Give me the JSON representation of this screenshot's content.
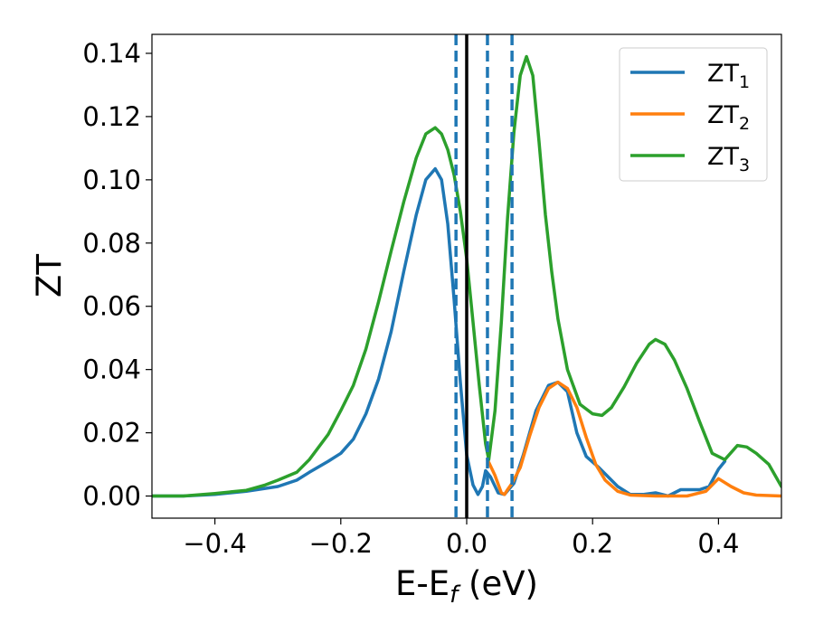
{
  "chart_data": {
    "type": "line",
    "title": "",
    "xlabel": "E-E",
    "xlabel_sub": "f",
    "xlabel_unit": " (eV)",
    "ylabel": "ZT",
    "xlim": [
      -0.5,
      0.5
    ],
    "ylim": [
      -0.007,
      0.146
    ],
    "x_ticks": [
      -0.4,
      -0.2,
      0.0,
      0.2,
      0.4
    ],
    "x_tick_labels": [
      "−0.4",
      "−0.2",
      "0.0",
      "0.2",
      "0.4"
    ],
    "y_ticks": [
      0.0,
      0.02,
      0.04,
      0.06,
      0.08,
      0.1,
      0.12,
      0.14
    ],
    "y_tick_labels": [
      "0.00",
      "0.02",
      "0.04",
      "0.06",
      "0.08",
      "0.10",
      "0.12",
      "0.14"
    ],
    "grid": false,
    "legend_position": "top-right",
    "colors": {
      "zt1": "#1f77b4",
      "zt2": "#ff7f0e",
      "zt3": "#2ca02c",
      "fermi": "#000000",
      "dashed": "#1f77b4"
    },
    "vertical_lines": [
      {
        "x": 0.0,
        "style": "solid",
        "color": "#000000"
      },
      {
        "x": -0.017,
        "style": "dashed",
        "color": "#1f77b4"
      },
      {
        "x": 0.033,
        "style": "dashed",
        "color": "#1f77b4"
      },
      {
        "x": 0.072,
        "style": "dashed",
        "color": "#1f77b4"
      }
    ],
    "series": [
      {
        "name": "ZT",
        "sub": "1",
        "color": "#1f77b4",
        "points": [
          [
            -0.5,
            0.0
          ],
          [
            -0.45,
            0.0
          ],
          [
            -0.4,
            0.0005
          ],
          [
            -0.35,
            0.0015
          ],
          [
            -0.3,
            0.003
          ],
          [
            -0.27,
            0.005
          ],
          [
            -0.25,
            0.0075
          ],
          [
            -0.22,
            0.011
          ],
          [
            -0.2,
            0.0135
          ],
          [
            -0.18,
            0.018
          ],
          [
            -0.16,
            0.026
          ],
          [
            -0.14,
            0.037
          ],
          [
            -0.12,
            0.052
          ],
          [
            -0.1,
            0.071
          ],
          [
            -0.08,
            0.089
          ],
          [
            -0.065,
            0.1
          ],
          [
            -0.05,
            0.1035
          ],
          [
            -0.04,
            0.1
          ],
          [
            -0.03,
            0.086
          ],
          [
            -0.02,
            0.062
          ],
          [
            -0.01,
            0.036
          ],
          [
            0.0,
            0.013
          ],
          [
            0.01,
            0.0035
          ],
          [
            0.018,
            0.0005
          ],
          [
            0.025,
            0.003
          ],
          [
            0.03,
            0.008
          ],
          [
            0.038,
            0.006
          ],
          [
            0.05,
            0.001
          ],
          [
            0.06,
            0.0005
          ],
          [
            0.075,
            0.004
          ],
          [
            0.09,
            0.013
          ],
          [
            0.11,
            0.027
          ],
          [
            0.13,
            0.035
          ],
          [
            0.145,
            0.036
          ],
          [
            0.16,
            0.033
          ],
          [
            0.175,
            0.02
          ],
          [
            0.19,
            0.0125
          ],
          [
            0.21,
            0.009
          ],
          [
            0.24,
            0.003
          ],
          [
            0.26,
            0.0005
          ],
          [
            0.28,
            0.0005
          ],
          [
            0.3,
            0.001
          ],
          [
            0.32,
            0.0
          ],
          [
            0.34,
            0.002
          ],
          [
            0.37,
            0.002
          ],
          [
            0.385,
            0.003
          ],
          [
            0.4,
            0.0085
          ],
          [
            0.41,
            0.011
          ]
        ]
      },
      {
        "name": "ZT",
        "sub": "2",
        "color": "#ff7f0e",
        "points": [
          [
            0.033,
            0.0115
          ],
          [
            0.045,
            0.0065
          ],
          [
            0.055,
            0.001
          ],
          [
            0.06,
            0.0005
          ],
          [
            0.065,
            0.002
          ],
          [
            0.072,
            0.004
          ],
          [
            0.085,
            0.009
          ],
          [
            0.1,
            0.019
          ],
          [
            0.115,
            0.028
          ],
          [
            0.13,
            0.034
          ],
          [
            0.145,
            0.036
          ],
          [
            0.16,
            0.034
          ],
          [
            0.175,
            0.028
          ],
          [
            0.19,
            0.0185
          ],
          [
            0.205,
            0.01
          ],
          [
            0.22,
            0.005
          ],
          [
            0.24,
            0.0015
          ],
          [
            0.26,
            0.0003
          ],
          [
            0.3,
            0.0
          ],
          [
            0.35,
            0.0
          ],
          [
            0.38,
            0.0015
          ],
          [
            0.4,
            0.0055
          ],
          [
            0.42,
            0.003
          ],
          [
            0.44,
            0.001
          ],
          [
            0.46,
            0.0003
          ],
          [
            0.5,
            0.0
          ]
        ]
      },
      {
        "name": "ZT",
        "sub": "3",
        "color": "#2ca02c",
        "points": [
          [
            -0.5,
            0.0
          ],
          [
            -0.45,
            0.0
          ],
          [
            -0.4,
            0.0008
          ],
          [
            -0.35,
            0.0018
          ],
          [
            -0.32,
            0.0035
          ],
          [
            -0.3,
            0.005
          ],
          [
            -0.27,
            0.0075
          ],
          [
            -0.25,
            0.0115
          ],
          [
            -0.22,
            0.0195
          ],
          [
            -0.2,
            0.027
          ],
          [
            -0.18,
            0.035
          ],
          [
            -0.16,
            0.0465
          ],
          [
            -0.14,
            0.0615
          ],
          [
            -0.12,
            0.0775
          ],
          [
            -0.1,
            0.093
          ],
          [
            -0.08,
            0.107
          ],
          [
            -0.065,
            0.1145
          ],
          [
            -0.05,
            0.1165
          ],
          [
            -0.04,
            0.1145
          ],
          [
            -0.03,
            0.1095
          ],
          [
            -0.02,
            0.1015
          ],
          [
            -0.01,
            0.09
          ],
          [
            0.0,
            0.075
          ],
          [
            0.01,
            0.055
          ],
          [
            0.02,
            0.035
          ],
          [
            0.03,
            0.0165
          ],
          [
            0.035,
            0.0115
          ],
          [
            0.045,
            0.027
          ],
          [
            0.055,
            0.055
          ],
          [
            0.065,
            0.088
          ],
          [
            0.075,
            0.115
          ],
          [
            0.085,
            0.133
          ],
          [
            0.095,
            0.139
          ],
          [
            0.105,
            0.133
          ],
          [
            0.115,
            0.112
          ],
          [
            0.125,
            0.089
          ],
          [
            0.135,
            0.071
          ],
          [
            0.145,
            0.056
          ],
          [
            0.16,
            0.04
          ],
          [
            0.18,
            0.029
          ],
          [
            0.2,
            0.026
          ],
          [
            0.215,
            0.0255
          ],
          [
            0.23,
            0.028
          ],
          [
            0.25,
            0.0345
          ],
          [
            0.27,
            0.042
          ],
          [
            0.29,
            0.048
          ],
          [
            0.3,
            0.0495
          ],
          [
            0.315,
            0.048
          ],
          [
            0.33,
            0.043
          ],
          [
            0.35,
            0.034
          ],
          [
            0.37,
            0.0235
          ],
          [
            0.39,
            0.0135
          ],
          [
            0.41,
            0.0115
          ],
          [
            0.43,
            0.016
          ],
          [
            0.445,
            0.0155
          ],
          [
            0.46,
            0.0135
          ],
          [
            0.48,
            0.01
          ],
          [
            0.5,
            0.003
          ]
        ]
      }
    ]
  }
}
